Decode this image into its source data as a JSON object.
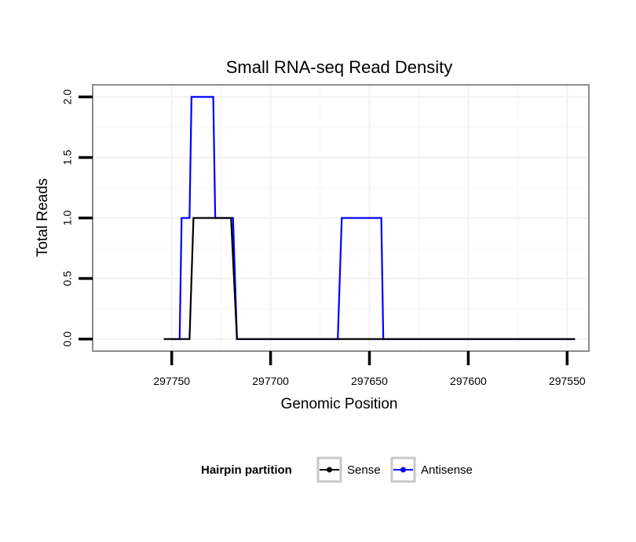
{
  "chart_data": {
    "type": "line",
    "title": "Small RNA-seq Read Density",
    "xlabel": "Genomic Position",
    "ylabel": "Total Reads",
    "x_reversed": true,
    "xlim": [
      297790,
      297539
    ],
    "ylim": [
      -0.1,
      2.1
    ],
    "xticks": [
      297750,
      297700,
      297650,
      297600,
      297550
    ],
    "xtick_labels": [
      "297750",
      "297700",
      "297650",
      "297600",
      "297550"
    ],
    "yticks": [
      0,
      0.5,
      1,
      1.5,
      2
    ],
    "ytick_labels": [
      "0.0",
      "0.5",
      "1.0",
      "1.5",
      "2.0"
    ],
    "grid": true,
    "legend": {
      "title": "Hairpin partition",
      "position": "bottom"
    },
    "series": [
      {
        "name": "Sense",
        "color": "#000000",
        "x": [
          297754,
          297741,
          297739,
          297720,
          297717,
          297546
        ],
        "y": [
          0,
          0,
          1,
          1,
          0,
          0
        ]
      },
      {
        "name": "Antisense",
        "color": "#0000ff",
        "x": [
          297750,
          297746,
          297745,
          297741,
          297740,
          297729,
          297728,
          297719,
          297717,
          297666,
          297664,
          297644,
          297643,
          297546
        ],
        "y": [
          0,
          0,
          1,
          1,
          2,
          2,
          1,
          1,
          0,
          0,
          1,
          1,
          0,
          0
        ]
      }
    ]
  }
}
